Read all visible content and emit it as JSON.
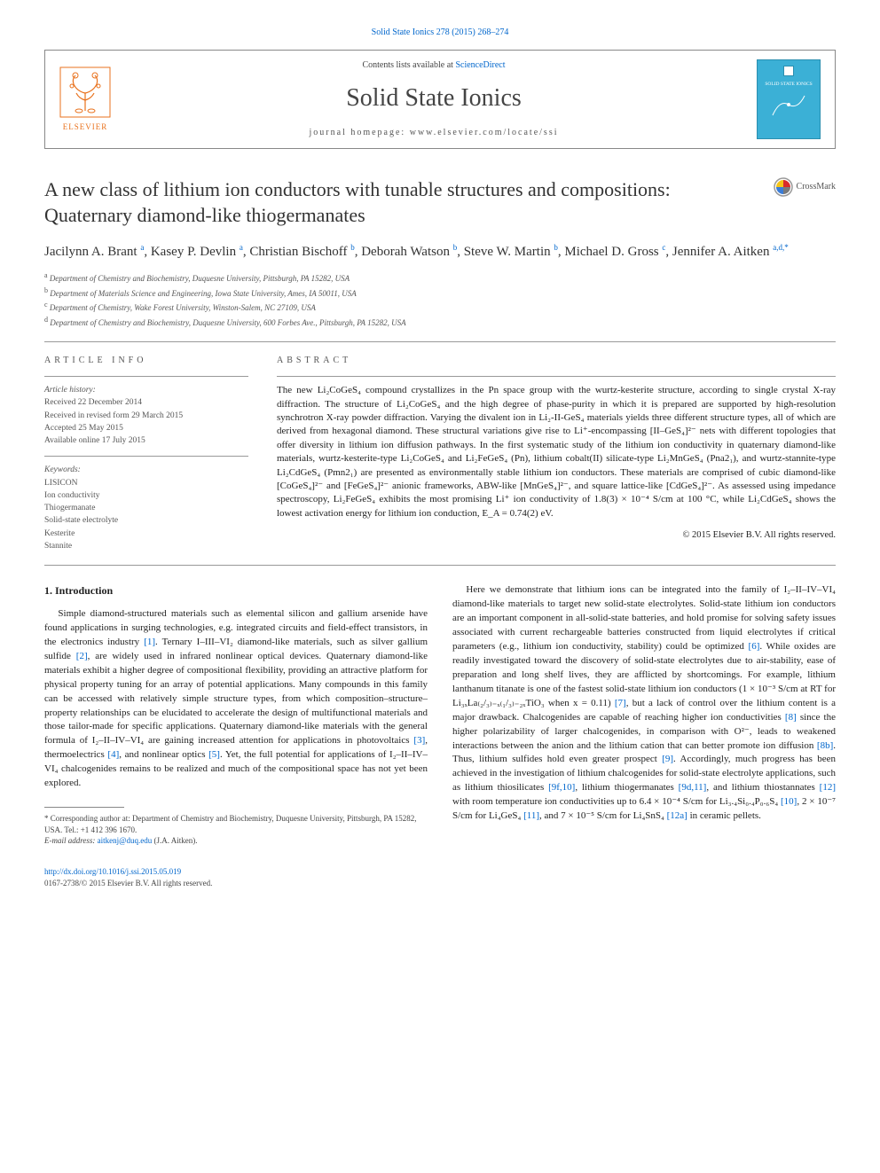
{
  "header": {
    "journal_ref": "Solid State Ionics 278 (2015) 268–274",
    "contents_prefix": "Contents lists available at ",
    "contents_link": "ScienceDirect",
    "journal_name": "Solid State Ionics",
    "homepage_label": "journal homepage: ",
    "homepage_url": "www.elsevier.com/locate/ssi",
    "publisher_name": "ELSEVIER",
    "cover_title": "SOLID STATE IONICS"
  },
  "crossmark": {
    "label": "CrossMark"
  },
  "title": "A new class of lithium ion conductors with tunable structures and compositions: Quaternary diamond-like thiogermanates",
  "authors_html": "Jacilynn A. Brant <sup>a</sup>, Kasey P. Devlin <sup>a</sup>, Christian Bischoff <sup>b</sup>, Deborah Watson <sup>b</sup>, Steve W. Martin <sup>b</sup>, Michael D. Gross <sup>c</sup>, Jennifer A. Aitken <sup>a,d,*</sup>",
  "affiliations": [
    {
      "sup": "a",
      "text": "Department of Chemistry and Biochemistry, Duquesne University, Pittsburgh, PA 15282, USA"
    },
    {
      "sup": "b",
      "text": "Department of Materials Science and Engineering, Iowa State University, Ames, IA 50011, USA"
    },
    {
      "sup": "c",
      "text": "Department of Chemistry, Wake Forest University, Winston-Salem, NC 27109, USA"
    },
    {
      "sup": "d",
      "text": "Department of Chemistry and Biochemistry, Duquesne University, 600 Forbes Ave., Pittsburgh, PA 15282, USA"
    }
  ],
  "article_info": {
    "heading": "ARTICLE INFO",
    "history_label": "Article history:",
    "received": "Received 22 December 2014",
    "revised": "Received in revised form 29 March 2015",
    "accepted": "Accepted 25 May 2015",
    "online": "Available online 17 July 2015",
    "keywords_label": "Keywords:",
    "keywords": [
      "LISICON",
      "Ion conductivity",
      "Thiogermanate",
      "Solid-state electrolyte",
      "Kesterite",
      "Stannite"
    ]
  },
  "abstract": {
    "heading": "ABSTRACT",
    "text": "The new Li₂CoGeS₄ compound crystallizes in the Pn space group with the wurtz-kesterite structure, according to single crystal X-ray diffraction. The structure of Li₂CoGeS₄ and the high degree of phase-purity in which it is prepared are supported by high-resolution synchrotron X-ray powder diffraction. Varying the divalent ion in Li₂-II-GeS₄ materials yields three different structure types, all of which are derived from hexagonal diamond. These structural variations give rise to Li⁺-encompassing [II–GeS₄]²⁻ nets with different topologies that offer diversity in lithium ion diffusion pathways. In the first systematic study of the lithium ion conductivity in quaternary diamond-like materials, wurtz-kesterite-type Li₂CoGeS₄ and Li₂FeGeS₄ (Pn), lithium cobalt(II) silicate-type Li₂MnGeS₄ (Pna2₁), and wurtz-stannite-type Li₂CdGeS₄ (Pmn2₁) are presented as environmentally stable lithium ion conductors. These materials are comprised of cubic diamond-like [CoGeS₄]²⁻ and [FeGeS₄]²⁻ anionic frameworks, ABW-like [MnGeS₄]²⁻, and square lattice-like [CdGeS₄]²⁻. As assessed using impedance spectroscopy, Li₂FeGeS₄ exhibits the most promising Li⁺ ion conductivity of 1.8(3) × 10⁻⁴ S/cm at 100 °C, while Li₂CdGeS₄ shows the lowest activation energy for lithium ion conduction, E_A = 0.74(2) eV.",
    "copyright": "© 2015 Elsevier B.V. All rights reserved."
  },
  "body": {
    "intro_heading": "1. Introduction",
    "col1_html": "Simple diamond-structured materials such as elemental silicon and gallium arsenide have found applications in surging technologies, e.g. integrated circuits and field-effect transistors, in the electronics industry <a class='ref' href='#'>[1]</a>. Ternary I–III–VI₂ diamond-like materials, such as silver gallium sulfide <a class='ref' href='#'>[2]</a>, are widely used in infrared nonlinear optical devices. Quaternary diamond-like materials exhibit a higher degree of compositional flexibility, providing an attractive platform for physical property tuning for an array of potential applications. Many compounds in this family can be accessed with relatively simple structure types, from which composition–structure–property relationships can be elucidated to accelerate the design of multifunctional materials and those tailor-made for specific applications. Quaternary diamond-like materials with the general formula of I₂–II–IV–VI₄ are gaining increased attention for applications in photovoltaics <a class='ref' href='#'>[3]</a>, thermoelectrics <a class='ref' href='#'>[4]</a>, and nonlinear optics <a class='ref' href='#'>[5]</a>. Yet, the full potential for applications of I₂–II–IV–VI₄ chalcogenides remains to be realized and much of the compositional space has not yet been explored.",
    "col2_html": "Here we demonstrate that lithium ions can be integrated into the family of I₂–II–IV–VI₄ diamond-like materials to target new solid-state electrolytes. Solid-state lithium ion conductors are an important component in all-solid-state batteries, and hold promise for solving safety issues associated with current rechargeable batteries constructed from liquid electrolytes if critical parameters (e.g., lithium ion conductivity, stability) could be optimized <a class='ref' href='#'>[6]</a>. While oxides are readily investigated toward the discovery of solid-state electrolytes due to air-stability, ease of preparation and long shelf lives, they are afflicted by shortcomings. For example, lithium lanthanum titanate is one of the fastest solid-state lithium ion conductors (1 × 10⁻³ S/cm at RT for Li₃ₓLa₍₂/₃₎₋ₓ₍₁/₃₎₋₂ₓTiO₃ when x = 0.11) <a class='ref' href='#'>[7]</a>, but a lack of control over the lithium content is a major drawback. Chalcogenides are capable of reaching higher ion conductivities <a class='ref' href='#'>[8]</a> since the higher polarizability of larger chalcogenides, in comparison with O²⁻, leads to weakened interactions between the anion and the lithium cation that can better promote ion diffusion <a class='ref' href='#'>[8b]</a>. Thus, lithium sulfides hold even greater prospect <a class='ref' href='#'>[9]</a>. Accordingly, much progress has been achieved in the investigation of lithium chalcogenides for solid-state electrolyte applications, such as lithium thiosilicates <a class='ref' href='#'>[9f,10]</a>, lithium thiogermanates <a class='ref' href='#'>[9d,11]</a>, and lithium thiostannates <a class='ref' href='#'>[12]</a> with room temperature ion conductivities up to 6.4 × 10⁻⁴ S/cm for Li₃.₄Si₀.₄P₀.₆S₄ <a class='ref' href='#'>[10]</a>, 2 × 10⁻⁷ S/cm for Li₄GeS₄ <a class='ref' href='#'>[11]</a>, and 7 × 10⁻⁵ S/cm for Li₄SnS₄ <a class='ref' href='#'>[12a]</a> in ceramic pellets."
  },
  "correspondence": {
    "note": "* Corresponding author at: Department of Chemistry and Biochemistry, Duquesne University, Pittsburgh, PA 15282, USA. Tel.: +1 412 396 1670.",
    "email_label": "E-mail address: ",
    "email": "aitkenj@duq.edu",
    "email_suffix": " (J.A. Aitken)."
  },
  "footer": {
    "doi": "http://dx.doi.org/10.1016/j.ssi.2015.05.019",
    "issn_line": "0167-2738/© 2015 Elsevier B.V. All rights reserved."
  },
  "colors": {
    "link": "#0066cc",
    "text": "#222222",
    "muted": "#555555",
    "rule": "#999999",
    "cover_bg": "#3bb0d6",
    "elsevier_orange": "#e9711c"
  }
}
